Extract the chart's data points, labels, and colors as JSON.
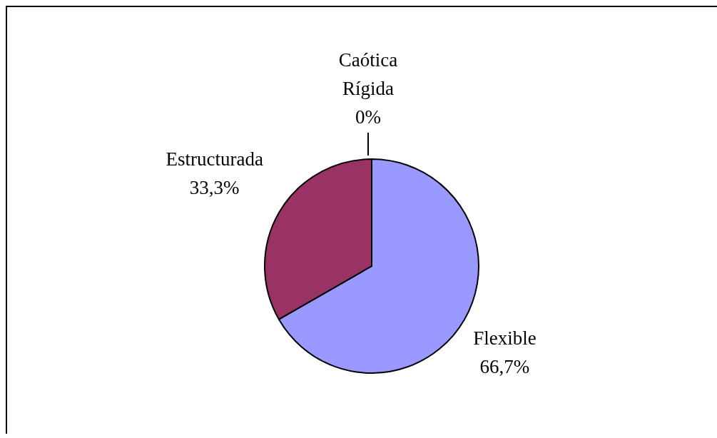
{
  "chart_data": {
    "type": "pie",
    "categories": [
      "Caótica",
      "Rígida",
      "Flexible",
      "Estructurada"
    ],
    "values": [
      0,
      0,
      66.7,
      33.3
    ],
    "colors": [
      "#ffffcc",
      "#ccffff",
      "#9999ff",
      "#993366"
    ],
    "value_labels": [
      null,
      "0%",
      "66,7%",
      "33,3%"
    ]
  }
}
